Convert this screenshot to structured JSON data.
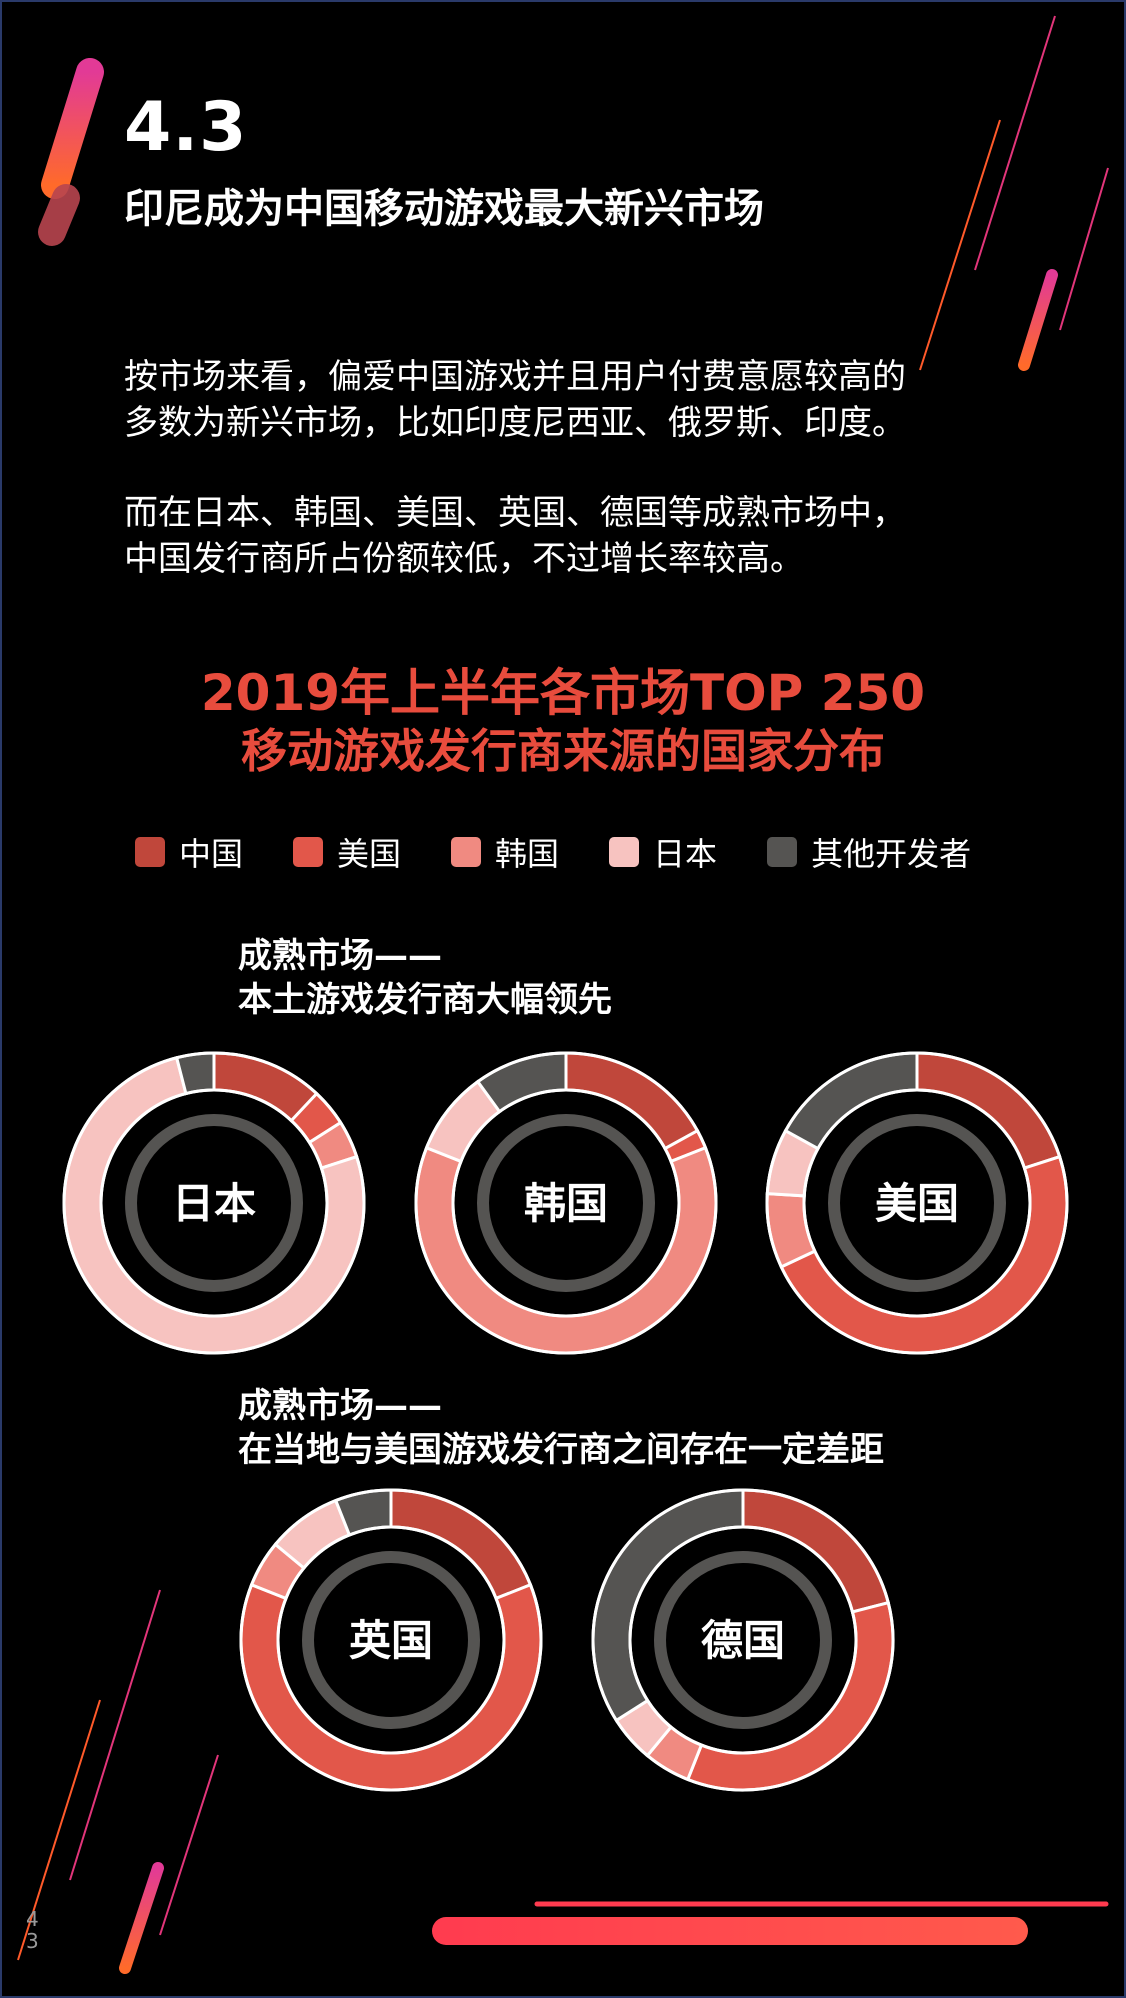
{
  "section": {
    "number": "4.3",
    "title": "印尼成为中国移动游戏最大新兴市场"
  },
  "paragraphs": {
    "p1_line1": "按市场来看，偏爱中国游戏并且用户付费意愿较高的",
    "p1_line2": "多数为新兴市场，比如印度尼西亚、俄罗斯、印度。",
    "p2_line1": "而在日本、韩国、美国、英国、德国等成熟市场中，",
    "p2_line2": "中国发行商所占份额较低，不过增长率较高。"
  },
  "chart_data": {
    "type": "donut",
    "title_line1": "2019年上半年各市场TOP 250",
    "title_line2": "移动游戏发行商来源的国家分布",
    "legend": [
      {
        "name": "中国",
        "color": "#c0473b"
      },
      {
        "name": "美国",
        "color": "#e2574a"
      },
      {
        "name": "韩国",
        "color": "#f08a81"
      },
      {
        "name": "日本",
        "color": "#f7c3c0"
      },
      {
        "name": "其他开发者",
        "color": "#555452"
      }
    ],
    "groups": [
      {
        "title_line1": "成熟市场——",
        "title_line2": "本土游戏发行商大幅领先",
        "markets": [
          {
            "label": "日本",
            "values": {
              "中国": 12,
              "美国": 4,
              "韩国": 4,
              "日本": 76,
              "其他开发者": 4
            }
          },
          {
            "label": "韩国",
            "values": {
              "中国": 17,
              "美国": 2,
              "韩国": 62,
              "日本": 9,
              "其他开发者": 10
            }
          },
          {
            "label": "美国",
            "values": {
              "中国": 20,
              "美国": 48,
              "韩国": 8,
              "日本": 7,
              "其他开发者": 17
            }
          }
        ]
      },
      {
        "title_line1": "成熟市场——",
        "title_line2": "在当地与美国游戏发行商之间存在一定差距",
        "markets": [
          {
            "label": "英国",
            "values": {
              "中国": 19,
              "美国": 62,
              "韩国": 5,
              "日本": 8,
              "其他开发者": 6
            }
          },
          {
            "label": "德国",
            "values": {
              "中国": 21,
              "美国": 35,
              "韩国": 5,
              "日本": 5,
              "其他开发者": 34
            }
          }
        ]
      }
    ]
  },
  "page_number": "43",
  "colors": {
    "accent_red": "#e84c3d",
    "inner_ring": "#555452",
    "bar_gradient_start": "#ff3b30",
    "bar_gradient_end": "#ff6b5a"
  }
}
